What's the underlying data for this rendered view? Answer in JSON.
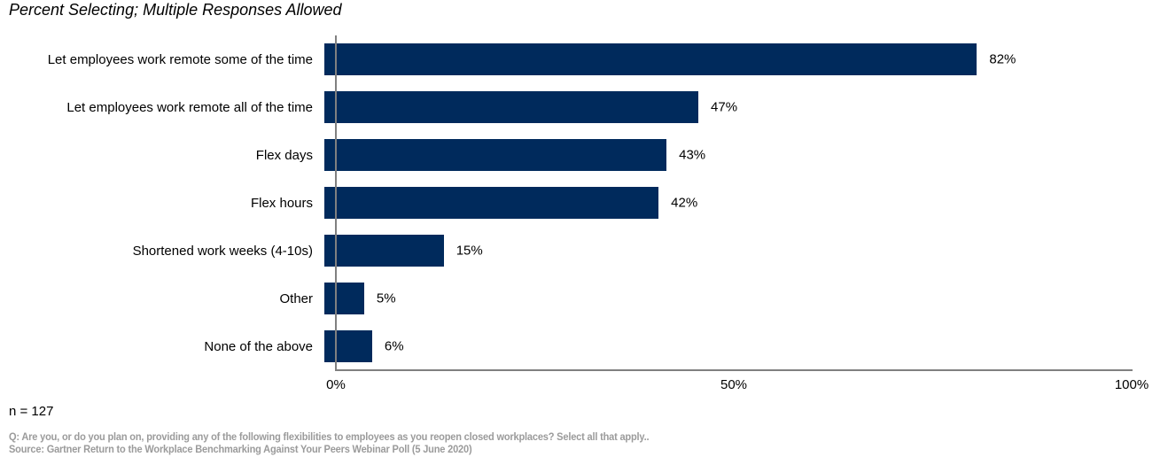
{
  "header": {
    "title": "Percent Selecting; Multiple Responses Allowed"
  },
  "chart_data": {
    "type": "bar",
    "orientation": "horizontal",
    "title": "Percent Selecting; Multiple Responses Allowed",
    "categories": [
      "Let employees work remote some of the time",
      "Let employees work remote all of the time",
      "Flex days",
      "Flex hours",
      "Shortened work weeks (4-10s)",
      "Other",
      "None of the above"
    ],
    "values": [
      82,
      47,
      43,
      42,
      15,
      5,
      6
    ],
    "value_labels": [
      "82%",
      "47%",
      "43%",
      "42%",
      "15%",
      "5%",
      "6%"
    ],
    "xlabel": "",
    "ylabel": "",
    "xlim": [
      0,
      100
    ],
    "x_ticks": [
      {
        "value": 0,
        "label": "0%"
      },
      {
        "value": 50,
        "label": "50%"
      },
      {
        "value": 100,
        "label": "100%"
      }
    ],
    "grid": false,
    "legend": false,
    "bar_color": "#002A5C",
    "axis_color": "#808080"
  },
  "footer": {
    "sample_size": "n = 127",
    "question": "Q: Are you, or do you plan on, providing any of the following flexibilities to employees as you reopen closed workplaces? Select all that apply..",
    "source": "Source: Gartner Return to the Workplace Benchmarking Against Your Peers Webinar Poll (5 June 2020)"
  }
}
